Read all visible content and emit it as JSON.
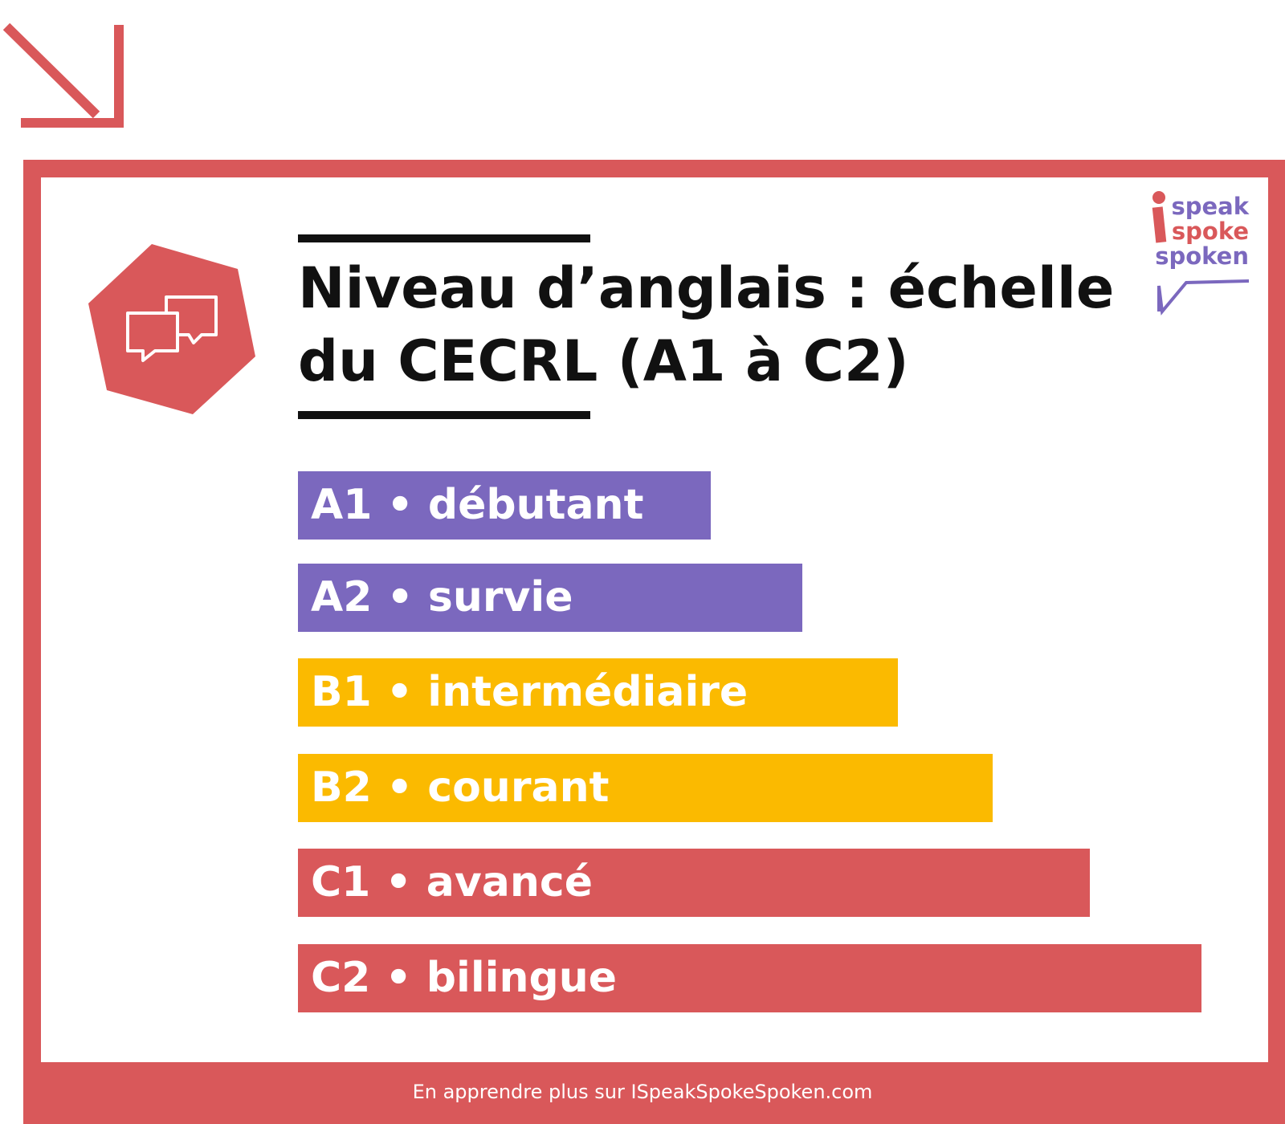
{
  "header": {
    "title_lines": [
      "Niveau d’anglais : échelle",
      "du CECRL (A1 à C2)"
    ]
  },
  "logo": {
    "lines": [
      {
        "text": "speak",
        "color": "#7b68be"
      },
      {
        "text": "spoke",
        "color": "#d9585a"
      },
      {
        "text": "spoken",
        "color": "#7b68be"
      }
    ]
  },
  "levels": [
    {
      "text": "A1 • débutant",
      "color": "#7b68be"
    },
    {
      "text": "A2 • survie",
      "color": "#7b68be"
    },
    {
      "text": "B1 • intermédiaire",
      "color": "#fbba00"
    },
    {
      "text": "B2 • courant",
      "color": "#fbba00"
    },
    {
      "text": "C1 • avancé",
      "color": "#d9585a"
    },
    {
      "text": "C2 • bilingue",
      "color": "#d9585a"
    }
  ],
  "footer": {
    "text": "En apprendre plus sur ISpeakSpokeSpoken.com"
  }
}
